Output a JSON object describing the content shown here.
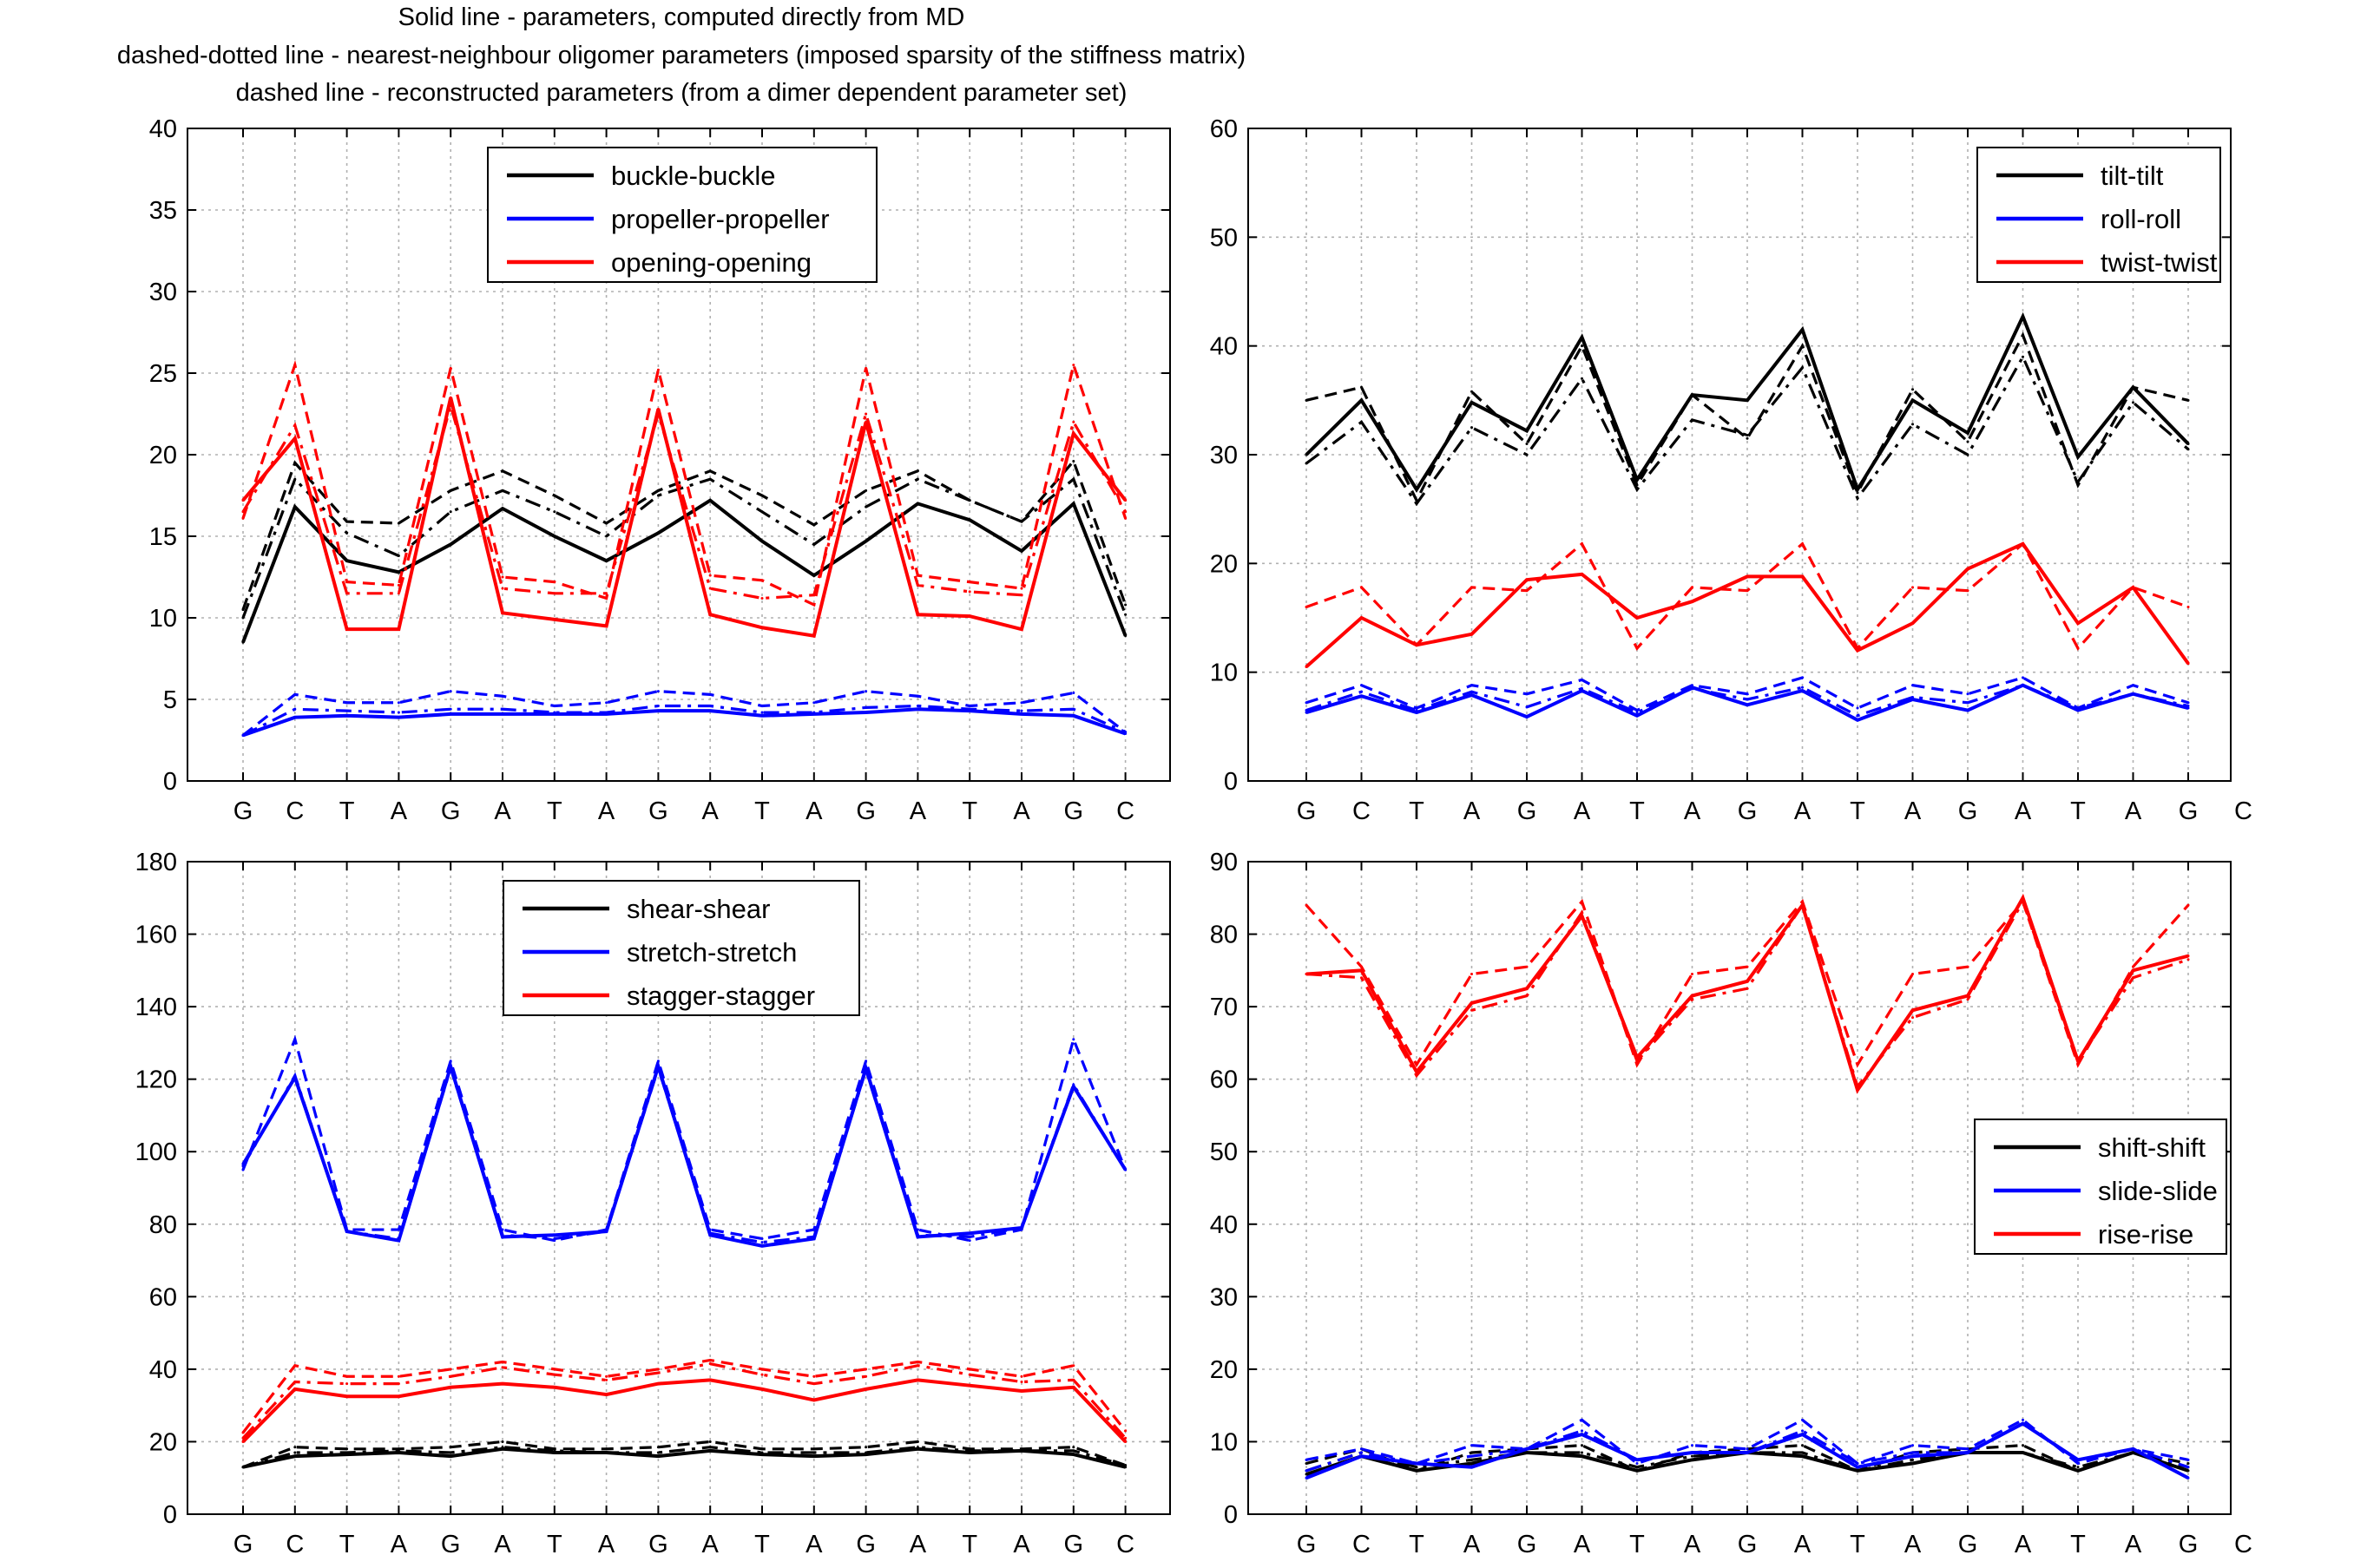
{
  "header": {
    "lines": [
      "Solid line - parameters, computed directly from MD",
      "dashed-dotted line - nearest-neighbour oligomer parameters (imposed sparsity of the stiffness matrix)",
      "dashed line - reconstructed parameters (from a dimer dependent parameter set)"
    ]
  },
  "colors": {
    "black": "#000000",
    "blue": "#0000ff",
    "red": "#ff0000"
  },
  "chart_data": [
    {
      "type": "line",
      "categories": [
        "G",
        "C",
        "T",
        "A",
        "G",
        "A",
        "T",
        "A",
        "G",
        "A",
        "T",
        "A",
        "G",
        "A",
        "T",
        "A",
        "G",
        "C"
      ],
      "ylim": [
        0,
        40
      ],
      "yticks": [
        0,
        5,
        10,
        15,
        20,
        25,
        30,
        35,
        40
      ],
      "grid": true,
      "legend_position": "top-center",
      "legend": [
        {
          "label": "buckle-buckle",
          "color": "black"
        },
        {
          "label": "propeller-propeller",
          "color": "blue"
        },
        {
          "label": "opening-opening",
          "color": "red"
        }
      ],
      "series": [
        {
          "color": "black",
          "style": "solid",
          "values": [
            8.5,
            16.8,
            13.5,
            12.8,
            14.5,
            16.7,
            15.0,
            13.5,
            15.2,
            17.2,
            14.7,
            12.6,
            14.7,
            17.0,
            16.0,
            14.1,
            17.0,
            8.9
          ]
        },
        {
          "color": "black",
          "style": "dashdot",
          "values": [
            10.0,
            18.5,
            15.2,
            13.8,
            16.5,
            17.8,
            16.5,
            15.0,
            17.5,
            18.5,
            16.5,
            14.5,
            16.8,
            18.5,
            17.2,
            15.9,
            18.5,
            10.2
          ]
        },
        {
          "color": "black",
          "style": "dashed",
          "values": [
            10.5,
            19.5,
            15.9,
            15.8,
            17.8,
            19.0,
            17.5,
            15.8,
            17.8,
            19.0,
            17.5,
            15.7,
            17.8,
            19.0,
            17.2,
            15.9,
            19.6,
            10.8
          ]
        },
        {
          "color": "blue",
          "style": "solid",
          "values": [
            2.8,
            3.9,
            4.0,
            3.9,
            4.1,
            4.1,
            4.1,
            4.1,
            4.3,
            4.3,
            4.0,
            4.1,
            4.2,
            4.4,
            4.3,
            4.1,
            4.0,
            2.9
          ]
        },
        {
          "color": "blue",
          "style": "dashdot",
          "values": [
            2.8,
            4.4,
            4.3,
            4.2,
            4.4,
            4.4,
            4.2,
            4.2,
            4.6,
            4.6,
            4.2,
            4.2,
            4.5,
            4.6,
            4.4,
            4.3,
            4.4,
            3.0
          ]
        },
        {
          "color": "blue",
          "style": "dashed",
          "values": [
            2.8,
            5.3,
            4.8,
            4.8,
            5.5,
            5.2,
            4.6,
            4.8,
            5.5,
            5.3,
            4.6,
            4.8,
            5.5,
            5.2,
            4.6,
            4.8,
            5.4,
            3.0
          ]
        },
        {
          "color": "red",
          "style": "solid",
          "values": [
            17.2,
            21.0,
            9.3,
            9.3,
            23.5,
            10.3,
            9.9,
            9.5,
            22.8,
            10.2,
            9.4,
            8.9,
            22.0,
            10.2,
            10.1,
            9.3,
            21.3,
            17.2
          ]
        },
        {
          "color": "red",
          "style": "dashdot",
          "values": [
            16.5,
            21.8,
            11.5,
            11.5,
            23.0,
            11.8,
            11.5,
            11.5,
            22.5,
            11.8,
            11.2,
            11.4,
            22.5,
            12.0,
            11.6,
            11.4,
            22.0,
            16.5
          ]
        },
        {
          "color": "red",
          "style": "dashed",
          "values": [
            16.1,
            25.5,
            12.2,
            12.0,
            25.3,
            12.5,
            12.2,
            11.2,
            25.2,
            12.6,
            12.3,
            10.8,
            25.3,
            12.6,
            12.2,
            11.8,
            25.5,
            16.1
          ]
        }
      ]
    },
    {
      "type": "line",
      "categories": [
        "G",
        "C",
        "T",
        "A",
        "G",
        "A",
        "T",
        "A",
        "G",
        "A",
        "T",
        "A",
        "G",
        "A",
        "T",
        "A",
        "G",
        "C"
      ],
      "ylim": [
        0,
        60
      ],
      "yticks": [
        0,
        10,
        20,
        30,
        40,
        50,
        60
      ],
      "grid": true,
      "legend_position": "top-right",
      "legend": [
        {
          "label": "tilt-tilt",
          "color": "black"
        },
        {
          "label": "roll-roll",
          "color": "blue"
        },
        {
          "label": "twist-twist",
          "color": "red"
        }
      ],
      "series": [
        {
          "color": "black",
          "style": "solid",
          "values": [
            30.0,
            35.0,
            26.8,
            34.8,
            32.2,
            40.8,
            27.7,
            35.5,
            35.0,
            41.5,
            26.8,
            35.0,
            32.0,
            42.7,
            29.8,
            36.2,
            31.0,
            null
          ]
        },
        {
          "color": "black",
          "style": "dashdot",
          "values": [
            29.2,
            33.0,
            25.5,
            32.5,
            30.0,
            37.0,
            26.8,
            33.2,
            31.8,
            38.0,
            26.0,
            32.8,
            30.0,
            39.0,
            27.5,
            34.8,
            30.5,
            null
          ]
        },
        {
          "color": "black",
          "style": "dashed",
          "values": [
            35.0,
            36.2,
            25.8,
            35.8,
            31.0,
            40.0,
            27.2,
            35.5,
            31.5,
            40.0,
            26.5,
            36.0,
            31.2,
            41.0,
            27.2,
            36.2,
            35.0,
            null
          ]
        },
        {
          "color": "blue",
          "style": "solid",
          "values": [
            6.3,
            7.8,
            6.3,
            7.9,
            5.9,
            8.3,
            6.0,
            8.6,
            7.0,
            8.3,
            5.6,
            7.5,
            6.5,
            8.8,
            6.5,
            8.0,
            6.7,
            null
          ]
        },
        {
          "color": "blue",
          "style": "dashdot",
          "values": [
            6.5,
            8.2,
            6.5,
            8.2,
            6.8,
            8.5,
            6.3,
            8.5,
            7.5,
            8.6,
            6.0,
            7.7,
            7.2,
            8.8,
            6.7,
            8.0,
            6.9,
            null
          ]
        },
        {
          "color": "blue",
          "style": "dashed",
          "values": [
            7.2,
            8.8,
            6.7,
            8.8,
            8.0,
            9.3,
            6.5,
            8.8,
            8.0,
            9.5,
            6.7,
            8.8,
            8.0,
            9.5,
            6.7,
            8.8,
            7.2,
            null
          ]
        },
        {
          "color": "red",
          "style": "solid",
          "values": [
            10.5,
            15.0,
            12.5,
            13.5,
            18.5,
            19.0,
            15.0,
            16.5,
            18.8,
            18.8,
            12.0,
            14.5,
            19.5,
            21.8,
            14.5,
            17.8,
            10.8,
            null
          ]
        },
        {
          "color": "red",
          "style": "dashdot",
          "values": [
            10.5,
            15.0,
            12.5,
            13.5,
            18.5,
            19.0,
            15.0,
            16.5,
            18.8,
            18.8,
            12.0,
            14.5,
            19.5,
            21.8,
            14.5,
            17.8,
            10.8,
            null
          ]
        },
        {
          "color": "red",
          "style": "dashed",
          "values": [
            16.0,
            17.8,
            12.5,
            17.8,
            17.5,
            21.8,
            12.2,
            17.8,
            17.5,
            21.8,
            12.2,
            17.8,
            17.5,
            21.8,
            12.2,
            17.8,
            16.0,
            null
          ]
        }
      ],
      "x_offset": -1
    },
    {
      "type": "line",
      "categories": [
        "G",
        "C",
        "T",
        "A",
        "G",
        "A",
        "T",
        "A",
        "G",
        "A",
        "T",
        "A",
        "G",
        "A",
        "T",
        "A",
        "G",
        "C"
      ],
      "ylim": [
        0,
        180
      ],
      "yticks": [
        0,
        20,
        40,
        60,
        80,
        100,
        120,
        140,
        160,
        180
      ],
      "grid": true,
      "legend_position": "top-center",
      "legend": [
        {
          "label": "shear-shear",
          "color": "black"
        },
        {
          "label": "stretch-stretch",
          "color": "blue"
        },
        {
          "label": "stagger-stagger",
          "color": "red"
        }
      ],
      "series": [
        {
          "color": "black",
          "style": "solid",
          "values": [
            13.0,
            16.0,
            16.5,
            17.0,
            16.0,
            18.0,
            17.0,
            17.0,
            16.0,
            17.5,
            16.5,
            16.0,
            16.5,
            18.0,
            17.0,
            17.5,
            16.5,
            13.0
          ]
        },
        {
          "color": "black",
          "style": "dashdot",
          "values": [
            13.0,
            17.0,
            17.0,
            17.5,
            17.0,
            18.5,
            17.5,
            17.0,
            17.0,
            18.5,
            17.0,
            17.0,
            17.0,
            18.5,
            17.5,
            17.5,
            17.5,
            13.5
          ]
        },
        {
          "color": "black",
          "style": "dashed",
          "values": [
            13.0,
            18.5,
            18.0,
            18.0,
            18.5,
            20.0,
            18.0,
            18.0,
            18.5,
            20.0,
            18.0,
            18.0,
            18.5,
            20.0,
            18.0,
            18.0,
            18.5,
            13.5
          ]
        },
        {
          "color": "blue",
          "style": "solid",
          "values": [
            96.5,
            120.5,
            78.0,
            75.5,
            123.5,
            76.5,
            77.0,
            78.0,
            123.5,
            77.0,
            74.0,
            76.0,
            123.0,
            76.5,
            77.5,
            79.0,
            118.0,
            95.0
          ]
        },
        {
          "color": "blue",
          "style": "dashdot",
          "values": [
            96.0,
            121.0,
            78.0,
            76.0,
            123.0,
            77.0,
            76.0,
            78.0,
            123.0,
            77.5,
            75.0,
            76.5,
            122.5,
            77.0,
            76.5,
            79.0,
            118.5,
            95.0
          ]
        },
        {
          "color": "blue",
          "style": "dashed",
          "values": [
            95.0,
            131.0,
            78.5,
            78.5,
            125.0,
            78.5,
            75.5,
            78.5,
            125.0,
            78.5,
            76.0,
            78.5,
            125.0,
            78.5,
            75.5,
            78.5,
            131.0,
            95.0
          ]
        },
        {
          "color": "red",
          "style": "solid",
          "values": [
            20.0,
            34.5,
            32.5,
            32.5,
            35.0,
            36.0,
            35.0,
            33.0,
            36.0,
            37.0,
            34.5,
            31.5,
            34.5,
            37.0,
            35.5,
            34.0,
            35.0,
            20.0
          ]
        },
        {
          "color": "red",
          "style": "dashdot",
          "values": [
            21.0,
            36.5,
            36.0,
            36.0,
            38.0,
            40.5,
            38.5,
            37.0,
            39.0,
            41.5,
            38.5,
            36.0,
            38.0,
            41.0,
            38.5,
            36.5,
            37.0,
            21.0
          ]
        },
        {
          "color": "red",
          "style": "dashed",
          "values": [
            22.5,
            41.0,
            38.0,
            38.0,
            40.0,
            42.0,
            40.0,
            38.0,
            40.0,
            42.5,
            40.0,
            38.0,
            40.0,
            42.0,
            40.0,
            38.0,
            41.0,
            23.0
          ]
        }
      ]
    },
    {
      "type": "line",
      "categories": [
        "G",
        "C",
        "T",
        "A",
        "G",
        "A",
        "T",
        "A",
        "G",
        "A",
        "T",
        "A",
        "G",
        "A",
        "T",
        "A",
        "G",
        "C"
      ],
      "ylim": [
        0,
        90
      ],
      "yticks": [
        0,
        10,
        20,
        30,
        40,
        50,
        60,
        70,
        80,
        90
      ],
      "grid": true,
      "legend_position": "center-right",
      "legend": [
        {
          "label": "shift-shift",
          "color": "black"
        },
        {
          "label": "slide-slide",
          "color": "blue"
        },
        {
          "label": "rise-rise",
          "color": "red"
        }
      ],
      "series": [
        {
          "color": "black",
          "style": "solid",
          "values": [
            5.5,
            8.0,
            6.0,
            7.0,
            8.5,
            8.0,
            6.0,
            7.5,
            8.5,
            8.0,
            6.0,
            7.0,
            8.5,
            8.5,
            6.0,
            8.5,
            6.0,
            null
          ]
        },
        {
          "color": "black",
          "style": "dashdot",
          "values": [
            6.0,
            8.5,
            6.5,
            7.5,
            8.5,
            8.5,
            6.5,
            8.0,
            8.5,
            8.5,
            6.0,
            7.5,
            8.5,
            8.5,
            6.5,
            8.5,
            6.5,
            null
          ]
        },
        {
          "color": "black",
          "style": "dashed",
          "values": [
            7.0,
            9.0,
            6.0,
            8.5,
            9.0,
            9.5,
            6.0,
            8.5,
            9.0,
            9.5,
            6.0,
            8.5,
            9.0,
            9.5,
            6.0,
            8.5,
            7.0,
            null
          ]
        },
        {
          "color": "blue",
          "style": "solid",
          "values": [
            5.0,
            8.0,
            7.0,
            6.5,
            9.0,
            11.0,
            7.5,
            8.5,
            8.5,
            11.0,
            6.5,
            8.0,
            8.5,
            12.5,
            7.5,
            9.0,
            5.0,
            null
          ]
        },
        {
          "color": "blue",
          "style": "dashdot",
          "values": [
            6.0,
            8.5,
            7.0,
            8.0,
            9.0,
            11.5,
            7.5,
            8.5,
            8.5,
            11.5,
            7.0,
            8.5,
            8.5,
            12.5,
            7.5,
            9.0,
            6.5,
            null
          ]
        },
        {
          "color": "blue",
          "style": "dashed",
          "values": [
            7.5,
            9.0,
            7.0,
            9.5,
            9.0,
            13.0,
            7.0,
            9.5,
            9.0,
            13.0,
            7.0,
            9.5,
            9.0,
            13.0,
            7.0,
            9.0,
            7.5,
            null
          ]
        },
        {
          "color": "red",
          "style": "solid",
          "values": [
            74.5,
            75.0,
            61.0,
            70.5,
            72.5,
            82.5,
            63.0,
            71.5,
            73.5,
            84.0,
            58.5,
            69.5,
            71.5,
            85.0,
            62.5,
            75.0,
            77.0,
            null
          ]
        },
        {
          "color": "red",
          "style": "dashdot",
          "values": [
            74.5,
            74.0,
            60.5,
            69.5,
            71.5,
            83.0,
            62.5,
            71.0,
            72.5,
            84.0,
            59.0,
            68.5,
            71.0,
            84.5,
            62.5,
            74.0,
            76.5,
            null
          ]
        },
        {
          "color": "red",
          "style": "dashed",
          "values": [
            84.0,
            75.5,
            62.0,
            74.5,
            75.5,
            84.5,
            62.0,
            74.5,
            75.5,
            84.5,
            62.0,
            74.5,
            75.5,
            84.5,
            62.0,
            75.5,
            84.0,
            null
          ]
        }
      ],
      "x_offset": -1
    }
  ]
}
